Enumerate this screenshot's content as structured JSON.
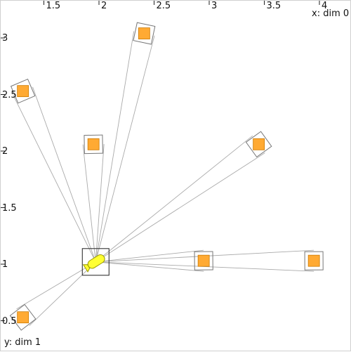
{
  "axes": {
    "x_label": "x: dim 0",
    "y_label": "y: dim 1",
    "x_ticks": [
      {
        "label": "1.5",
        "value": 1.5
      },
      {
        "label": "2",
        "value": 2.0
      },
      {
        "label": "2.5",
        "value": 2.5
      },
      {
        "label": "3",
        "value": 3.0
      },
      {
        "label": "3.5",
        "value": 3.5
      },
      {
        "label": "4",
        "value": 4.0
      }
    ],
    "y_ticks": [
      {
        "label": "3",
        "value": 3.0
      },
      {
        "label": "2.5",
        "value": 2.5
      },
      {
        "label": "2",
        "value": 2.0
      },
      {
        "label": "1.5",
        "value": 1.5
      },
      {
        "label": "1",
        "value": 1.0
      },
      {
        "label": "0.5",
        "value": 0.5
      }
    ]
  },
  "robot": {
    "x": 1.97,
    "y": 1.02,
    "heading_deg": 32,
    "color": "#ffff33",
    "outline": "#999900",
    "icon": "submarine-icon"
  },
  "targets": [
    {
      "x": 2.41,
      "y": 3.04,
      "color": "#ffaa33"
    },
    {
      "x": 1.31,
      "y": 2.53,
      "color": "#ffaa33"
    },
    {
      "x": 1.95,
      "y": 2.06,
      "color": "#ffaa33"
    },
    {
      "x": 3.45,
      "y": 2.06,
      "color": "#ffaa33"
    },
    {
      "x": 2.95,
      "y": 1.03,
      "color": "#ffaa33"
    },
    {
      "x": 3.95,
      "y": 1.03,
      "color": "#ffaa33"
    },
    {
      "x": 1.31,
      "y": 0.53,
      "color": "#ffaa33"
    }
  ],
  "colors": {
    "ray": "#aaaaaa",
    "frame": "#777777",
    "robot_box": "#333333",
    "target_border": "#cc7a00"
  }
}
